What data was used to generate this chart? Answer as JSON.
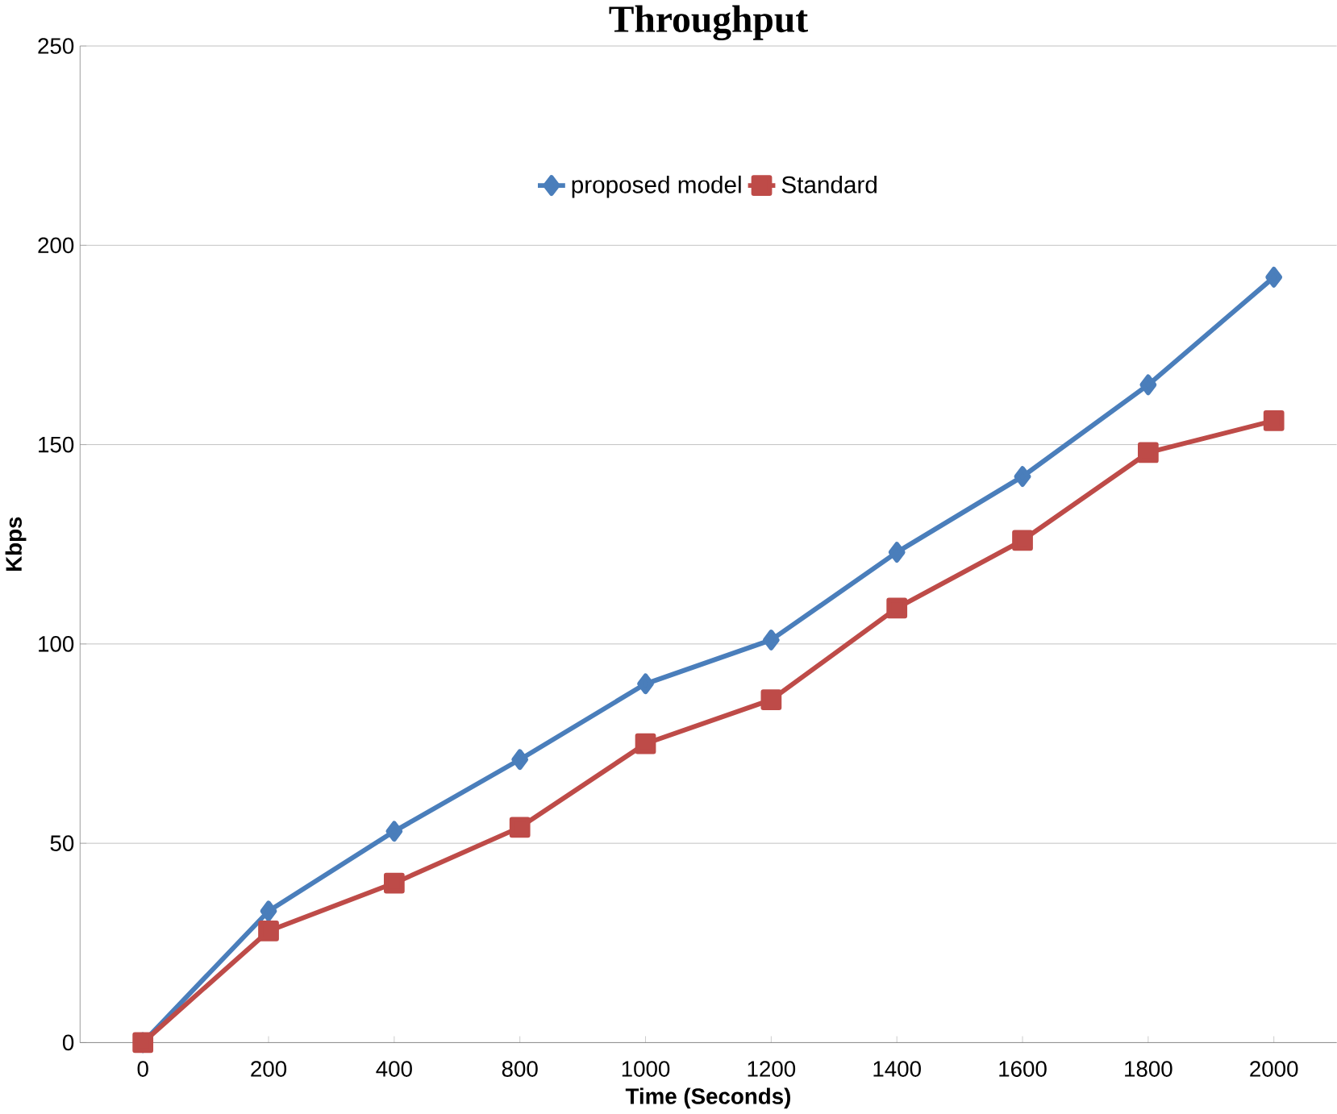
{
  "chart_data": {
    "type": "line",
    "title": "Throughput",
    "xlabel": "Time (Seconds)",
    "ylabel": "Kbps",
    "categories": [
      "0",
      "200",
      "400",
      "800",
      "1000",
      "1200",
      "1400",
      "1600",
      "1800",
      "2000"
    ],
    "series": [
      {
        "name": "proposed model",
        "color": "#4a7ebb",
        "marker": "diamond",
        "values": [
          0,
          33,
          53,
          71,
          90,
          101,
          123,
          142,
          165,
          192
        ]
      },
      {
        "name": "Standard",
        "color": "#be4b48",
        "marker": "square",
        "values": [
          0,
          28,
          40,
          54,
          75,
          86,
          109,
          126,
          148,
          156
        ]
      }
    ],
    "ylim": [
      0,
      250
    ],
    "yticks": [
      0,
      50,
      100,
      150,
      200,
      250
    ],
    "grid": "y",
    "legend": "top",
    "line_style": "solid"
  }
}
